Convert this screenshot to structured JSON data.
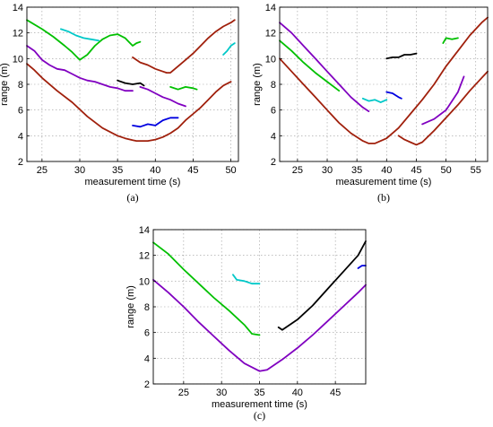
{
  "chart_data": [
    {
      "type": "line",
      "panel_label": "(a)",
      "xlabel": "measurement time (s)",
      "ylabel": "range (m)",
      "xlim": [
        23,
        51
      ],
      "ylim": [
        2,
        14
      ],
      "xticks": [
        25,
        30,
        35,
        40,
        45,
        50
      ],
      "yticks": [
        2,
        4,
        6,
        8,
        10,
        12,
        14
      ],
      "grid": true,
      "series": [
        {
          "color": "#00c000",
          "x": [
            23,
            25,
            26.5,
            28,
            29,
            30,
            31,
            32,
            33,
            34,
            35,
            36,
            36.5,
            37,
            37.5,
            38
          ],
          "y": [
            13.0,
            12.3,
            11.7,
            11.0,
            10.5,
            9.9,
            10.3,
            11.0,
            11.5,
            11.8,
            11.9,
            11.6,
            11.3,
            11.0,
            11.2,
            11.3
          ]
        },
        {
          "color": "#00c8c8",
          "x": [
            27.5,
            28.5,
            29.5,
            30.5,
            31.5,
            32.5
          ],
          "y": [
            12.3,
            12.1,
            11.8,
            11.6,
            11.5,
            11.4
          ]
        },
        {
          "color": "#8000c0",
          "x": [
            23,
            24,
            25,
            26,
            27,
            28,
            29,
            30,
            31,
            32,
            33,
            34,
            35,
            36,
            37
          ],
          "y": [
            11.0,
            10.6,
            9.9,
            9.5,
            9.2,
            9.1,
            8.8,
            8.5,
            8.3,
            8.2,
            8.0,
            7.8,
            7.7,
            7.5,
            7.5
          ]
        },
        {
          "color": "#a0200c",
          "x": [
            23,
            24,
            25,
            27,
            29,
            31,
            33,
            35,
            36,
            37,
            37.5,
            38,
            39,
            40,
            41,
            42,
            43,
            44,
            45,
            46,
            47,
            48,
            49,
            50
          ],
          "y": [
            9.6,
            9.1,
            8.5,
            7.5,
            6.6,
            5.5,
            4.6,
            4.0,
            3.8,
            3.65,
            3.6,
            3.6,
            3.6,
            3.7,
            3.9,
            4.2,
            4.6,
            5.2,
            5.7,
            6.2,
            6.8,
            7.4,
            7.9,
            8.2
          ]
        },
        {
          "color": "#a0200c",
          "x": [
            37,
            38,
            39,
            40,
            41,
            41.5,
            42,
            43,
            44,
            45,
            46,
            47,
            48,
            49,
            50,
            50.5
          ],
          "y": [
            10.1,
            9.7,
            9.5,
            9.2,
            9.0,
            8.9,
            8.9,
            9.4,
            9.9,
            10.4,
            11.0,
            11.6,
            12.1,
            12.5,
            12.8,
            13.0
          ]
        },
        {
          "color": "#000000",
          "x": [
            35,
            36,
            37,
            38,
            38.5
          ],
          "y": [
            8.3,
            8.1,
            8.0,
            8.1,
            7.9
          ]
        },
        {
          "color": "#8000c0",
          "x": [
            38,
            39,
            40,
            41,
            42,
            43,
            44
          ],
          "y": [
            7.8,
            7.6,
            7.3,
            7.0,
            6.8,
            6.5,
            6.3
          ]
        },
        {
          "color": "#00c000",
          "x": [
            42,
            43,
            44,
            45,
            45.5
          ],
          "y": [
            7.8,
            7.6,
            7.8,
            7.7,
            7.6
          ]
        },
        {
          "color": "#0000e0",
          "x": [
            37,
            38,
            39,
            40,
            41,
            42,
            43
          ],
          "y": [
            4.8,
            4.7,
            4.9,
            4.8,
            5.2,
            5.4,
            5.4
          ]
        },
        {
          "color": "#00c8c8",
          "x": [
            49,
            49.5,
            50,
            50.5
          ],
          "y": [
            10.3,
            10.6,
            11.0,
            11.2
          ]
        }
      ]
    },
    {
      "type": "line",
      "panel_label": "(b)",
      "xlabel": "measurement time (s)",
      "ylabel": "range (m)",
      "xlim": [
        22,
        57
      ],
      "ylim": [
        2,
        14
      ],
      "xticks": [
        25,
        30,
        35,
        40,
        45,
        50,
        55
      ],
      "yticks": [
        2,
        4,
        6,
        8,
        10,
        12,
        14
      ],
      "grid": true,
      "series": [
        {
          "color": "#8000c0",
          "x": [
            22,
            24,
            26,
            28,
            30,
            32,
            34,
            36,
            37
          ],
          "y": [
            12.8,
            12.0,
            11.0,
            10.0,
            9.0,
            8.0,
            7.0,
            6.2,
            5.9
          ]
        },
        {
          "color": "#00c000",
          "x": [
            22,
            24,
            26,
            28,
            30,
            32
          ],
          "y": [
            11.4,
            10.6,
            9.7,
            8.9,
            8.2,
            7.5
          ]
        },
        {
          "color": "#a0200c",
          "x": [
            22,
            24,
            26,
            28,
            30,
            32,
            34,
            36,
            37,
            38,
            40,
            42,
            44,
            46,
            48,
            50,
            52,
            54,
            56,
            57
          ],
          "y": [
            10.0,
            9.0,
            8.0,
            7.0,
            6.0,
            5.0,
            4.2,
            3.6,
            3.4,
            3.4,
            3.8,
            4.6,
            5.7,
            6.8,
            8.0,
            9.4,
            10.6,
            11.8,
            12.8,
            13.2
          ]
        },
        {
          "color": "#000000",
          "x": [
            40,
            41,
            42,
            43,
            44,
            45
          ],
          "y": [
            10.0,
            10.1,
            10.1,
            10.3,
            10.3,
            10.4
          ]
        },
        {
          "color": "#00c8c8",
          "x": [
            36,
            37,
            38,
            39,
            40
          ],
          "y": [
            6.9,
            6.7,
            6.8,
            6.6,
            6.8
          ]
        },
        {
          "color": "#0000e0",
          "x": [
            40,
            41,
            42,
            42.5
          ],
          "y": [
            7.4,
            7.3,
            7.0,
            6.9
          ]
        },
        {
          "color": "#a0200c",
          "x": [
            42,
            43,
            44,
            45,
            46,
            48,
            50,
            52,
            54,
            56,
            57
          ],
          "y": [
            4.0,
            3.7,
            3.5,
            3.3,
            3.5,
            4.4,
            5.4,
            6.4,
            7.5,
            8.5,
            9.0
          ]
        },
        {
          "color": "#8000c0",
          "x": [
            46,
            48,
            50,
            52,
            53
          ],
          "y": [
            4.9,
            5.3,
            6.0,
            7.4,
            8.6
          ]
        },
        {
          "color": "#00c000",
          "x": [
            49.5,
            50,
            51,
            52
          ],
          "y": [
            11.2,
            11.6,
            11.5,
            11.6
          ]
        }
      ]
    },
    {
      "type": "line",
      "panel_label": "(c)",
      "xlabel": "measurement time (s)",
      "ylabel": "range (m)",
      "xlim": [
        21,
        49
      ],
      "ylim": [
        2,
        14
      ],
      "xticks": [
        25,
        30,
        35,
        40,
        45
      ],
      "yticks": [
        2,
        4,
        6,
        8,
        10,
        12,
        14
      ],
      "grid": true,
      "series": [
        {
          "color": "#00c000",
          "x": [
            21,
            23,
            25,
            27,
            29,
            31,
            33,
            34,
            35
          ],
          "y": [
            13.0,
            12.1,
            10.9,
            9.8,
            8.7,
            7.7,
            6.6,
            5.9,
            5.8
          ]
        },
        {
          "color": "#8000c0",
          "x": [
            21,
            23,
            25,
            27,
            29,
            31,
            33,
            35,
            36,
            38,
            40,
            42,
            44,
            46,
            48,
            49
          ],
          "y": [
            10.1,
            9.1,
            8.0,
            6.8,
            5.7,
            4.6,
            3.6,
            3.0,
            3.1,
            3.9,
            4.8,
            5.8,
            6.9,
            8.0,
            9.1,
            9.7
          ]
        },
        {
          "color": "#00c8c8",
          "x": [
            31.5,
            32,
            33,
            34,
            35
          ],
          "y": [
            10.5,
            10.1,
            10.0,
            9.8,
            9.8
          ]
        },
        {
          "color": "#000000",
          "x": [
            37.5,
            38,
            40,
            42,
            44,
            46,
            48,
            49
          ],
          "y": [
            6.4,
            6.2,
            7.0,
            8.1,
            9.4,
            10.7,
            12.0,
            13.1
          ]
        },
        {
          "color": "#0000e0",
          "x": [
            48,
            48.5,
            49
          ],
          "y": [
            11.0,
            11.2,
            11.2
          ]
        }
      ]
    }
  ]
}
